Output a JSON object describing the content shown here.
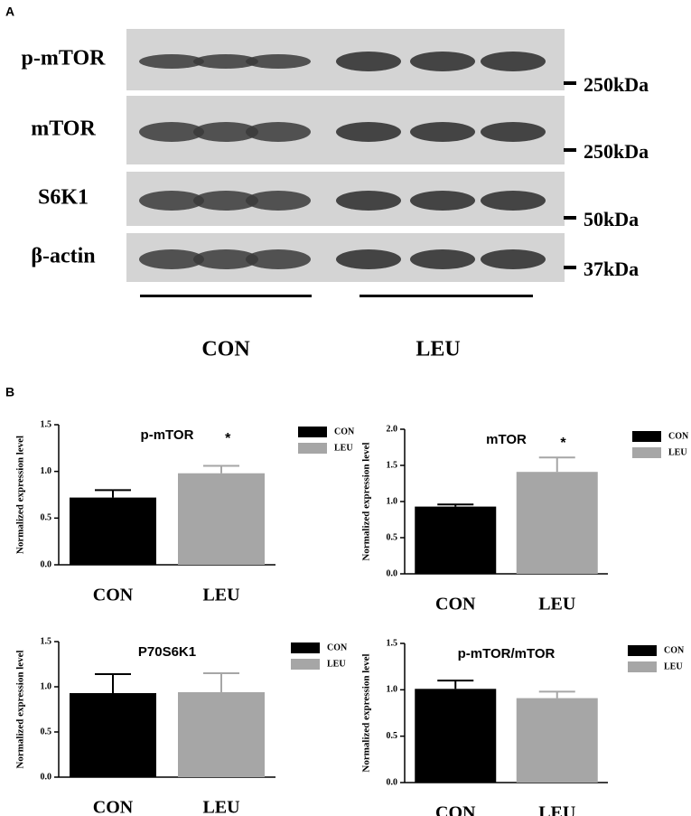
{
  "panel_labels": [
    "A",
    "B"
  ],
  "blot": {
    "rows": [
      {
        "label": "p-mTOR",
        "marker": "250kDa"
      },
      {
        "label": "mTOR",
        "marker": "250kDa"
      },
      {
        "label": "S6K1",
        "marker": "50kDa"
      },
      {
        "label": "β-actin",
        "marker": "37kDa"
      }
    ],
    "groups": [
      "CON",
      "LEU"
    ]
  },
  "chart_data": [
    {
      "type": "bar",
      "title": "p-mTOR",
      "ylabel": "Normalized expression level",
      "annotation": "*",
      "categories": [
        "CON",
        "LEU"
      ],
      "values": [
        0.72,
        0.98
      ],
      "errors": [
        0.08,
        0.08
      ],
      "colors": [
        "#000000",
        "#a6a6a6"
      ],
      "legend": "right",
      "ylim": [
        0,
        1.5
      ],
      "yticks": [
        {
          "value": 0,
          "label": "0.0"
        },
        {
          "value": 0.5,
          "label": "0.5"
        },
        {
          "value": 1,
          "label": "1.0"
        },
        {
          "value": 1.5,
          "label": "1.5"
        }
      ]
    },
    {
      "type": "bar",
      "title": "mTOR",
      "ylabel": "Normalized expression level",
      "annotation": "*",
      "categories": [
        "CON",
        "LEU"
      ],
      "values": [
        0.93,
        1.41
      ],
      "errors": [
        0.03,
        0.2
      ],
      "colors": [
        "#000000",
        "#a6a6a6"
      ],
      "legend": "right",
      "ylim": [
        0,
        2
      ],
      "yticks": [
        {
          "value": 0,
          "label": "0.0"
        },
        {
          "value": 0.5,
          "label": "0.5"
        },
        {
          "value": 1,
          "label": "1.0"
        },
        {
          "value": 1.5,
          "label": "1.5"
        },
        {
          "value": 2,
          "label": "2.0"
        }
      ]
    },
    {
      "type": "bar",
      "title": "P70S6K1",
      "ylabel": "Normalized expression level",
      "categories": [
        "CON",
        "LEU"
      ],
      "values": [
        0.93,
        0.94
      ],
      "errors": [
        0.21,
        0.21
      ],
      "colors": [
        "#000000",
        "#a6a6a6"
      ],
      "legend": "right",
      "ylim": [
        0,
        1.5
      ],
      "yticks": [
        {
          "value": 0,
          "label": "0.0"
        },
        {
          "value": 0.5,
          "label": "0.5"
        },
        {
          "value": 1,
          "label": "1.0"
        },
        {
          "value": 1.5,
          "label": "1.5"
        }
      ]
    },
    {
      "type": "bar",
      "title": "p-mTOR/mTOR",
      "ylabel": "Normalized expression level",
      "categories": [
        "CON",
        "LEU"
      ],
      "values": [
        1.01,
        0.91
      ],
      "errors": [
        0.09,
        0.07
      ],
      "colors": [
        "#000000",
        "#a6a6a6"
      ],
      "legend": "right",
      "ylim": [
        0,
        1.5
      ],
      "yticks": [
        {
          "value": 0,
          "label": "0.0"
        },
        {
          "value": 0.5,
          "label": "0.5"
        },
        {
          "value": 1,
          "label": "1.0"
        },
        {
          "value": 1.5,
          "label": "1.5"
        }
      ]
    }
  ]
}
